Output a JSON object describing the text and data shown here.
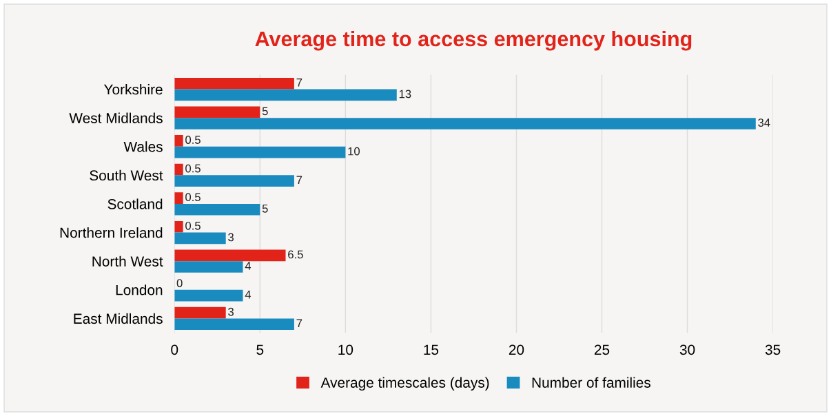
{
  "chart_data": {
    "type": "bar",
    "orientation": "horizontal",
    "title": "Average time to access emergency housing",
    "categories": [
      "Yorkshire",
      "West Midlands",
      "Wales",
      "South West",
      "Scotland",
      "Northern Ireland",
      "North West",
      "London",
      "East Midlands"
    ],
    "series": [
      {
        "name": "Average timescales (days)",
        "color": "#e2231a",
        "values": [
          7,
          5,
          0.5,
          0.5,
          0.5,
          0.5,
          6.5,
          0,
          3
        ]
      },
      {
        "name": "Number of families",
        "color": "#1a8bbf",
        "values": [
          13,
          34,
          10,
          7,
          5,
          3,
          4,
          4,
          7
        ]
      }
    ],
    "xlim": [
      0,
      35
    ],
    "xticks": [
      0,
      5,
      10,
      15,
      20,
      25,
      30,
      35
    ],
    "grid": "x",
    "legend": "bottom",
    "data_labels": true
  }
}
